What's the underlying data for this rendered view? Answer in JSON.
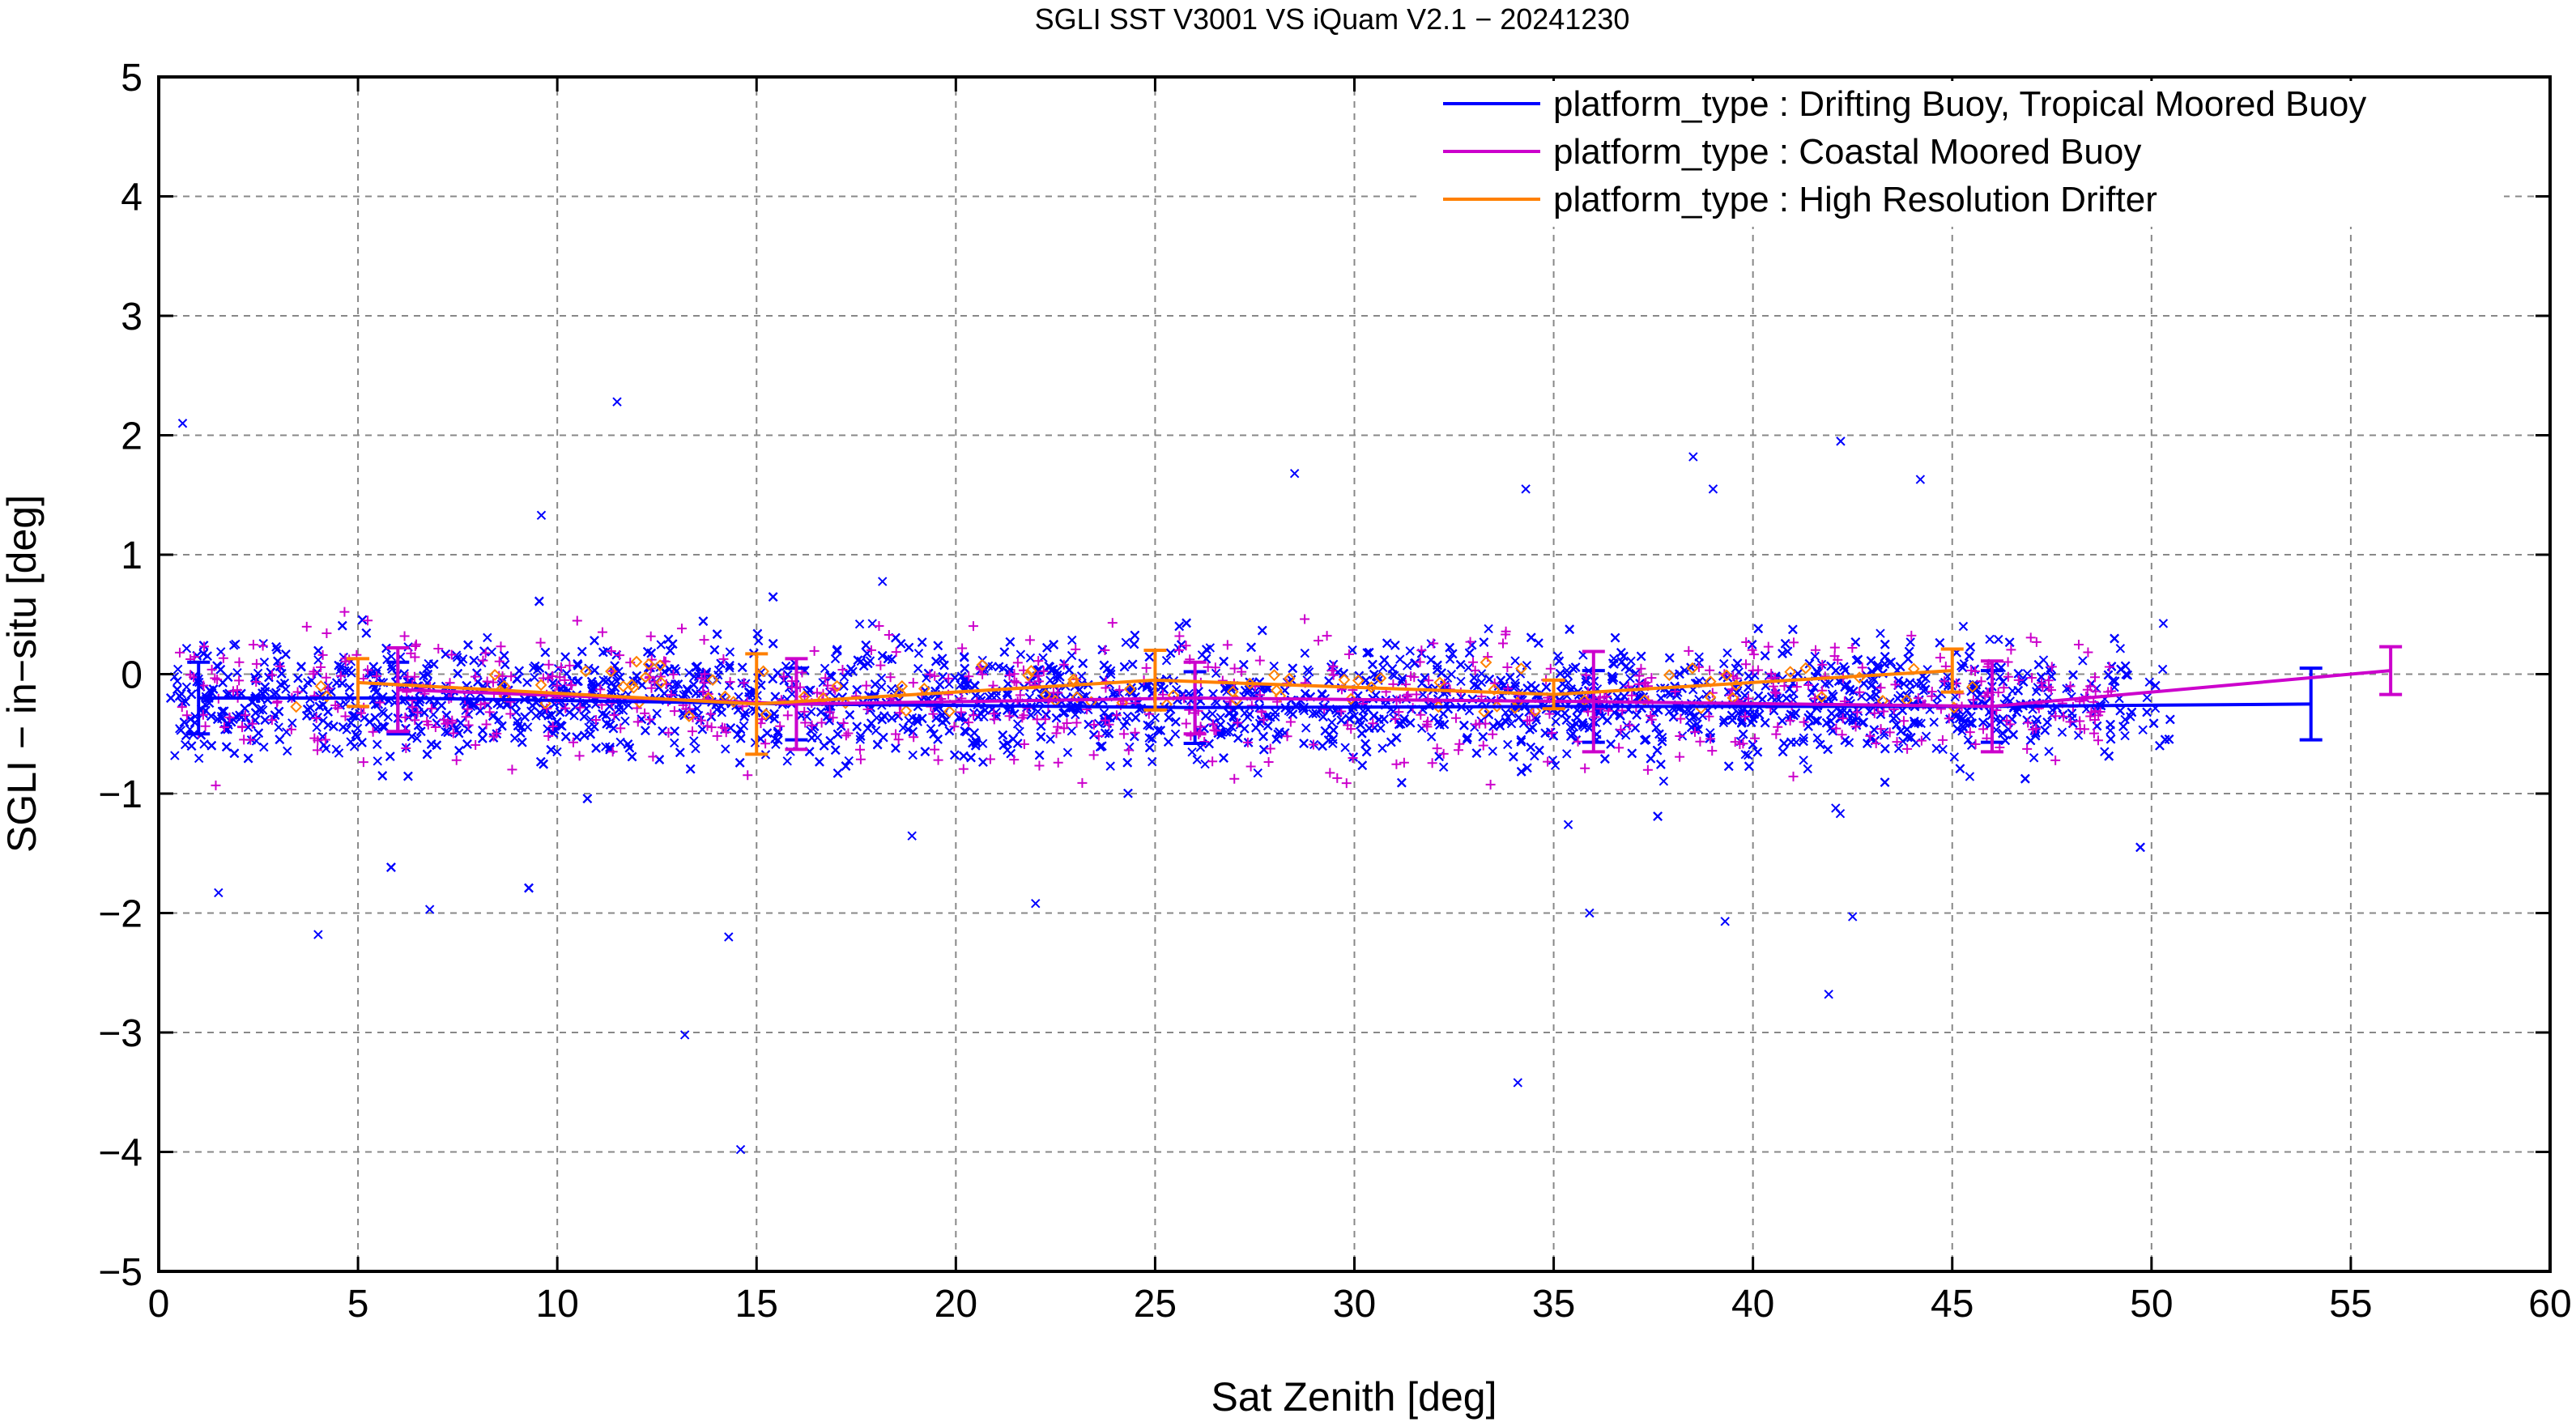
{
  "chart_data": {
    "type": "scatter",
    "title": "SGLI SST V3001 VS iQuam V2.1  − 20241230",
    "xlabel": "Sat Zenith [deg]",
    "ylabel": "SGLI − in−situ [deg]",
    "xlim": [
      0,
      60
    ],
    "ylim": [
      -5,
      5
    ],
    "xticks": [
      0,
      5,
      10,
      15,
      20,
      25,
      30,
      35,
      40,
      45,
      50,
      55,
      60
    ],
    "yticks": [
      -5,
      -4,
      -3,
      -2,
      -1,
      0,
      1,
      2,
      3,
      4,
      5
    ],
    "xtick_labels": [
      "0",
      "5",
      "10",
      "15",
      "20",
      "25",
      "30",
      "35",
      "40",
      "45",
      "50",
      "55",
      "60"
    ],
    "ytick_labels": [
      "−5",
      "−4",
      "−3",
      "−2",
      "−1",
      "0",
      "1",
      "2",
      "3",
      "4",
      "5"
    ],
    "grid": true,
    "legend_position": "top-right",
    "scatter_extent": {
      "x_range": [
        0.3,
        50.5
      ],
      "typical_y_range": [
        -1.0,
        0.6
      ]
    },
    "series": [
      {
        "name": "platform_type : Drifting Buoy, Tropical Moored Buoy",
        "color": "#0000ff",
        "marker": "x",
        "bin_x": [
          1,
          6,
          16,
          26,
          36,
          46,
          54
        ],
        "bin_mean": [
          -0.2,
          -0.2,
          -0.25,
          -0.28,
          -0.27,
          -0.27,
          -0.25
        ],
        "bin_std": [
          0.3,
          0.3,
          0.3,
          0.3,
          0.3,
          0.3,
          0.3
        ],
        "outliers": [
          {
            "x": 0.6,
            "y": 2.1
          },
          {
            "x": 11.5,
            "y": 2.28
          },
          {
            "x": 38.5,
            "y": 1.82
          },
          {
            "x": 28.5,
            "y": 1.68
          },
          {
            "x": 34.3,
            "y": 1.55
          },
          {
            "x": 39.0,
            "y": 1.55
          },
          {
            "x": 42.2,
            "y": 1.95
          },
          {
            "x": 44.2,
            "y": 1.63
          },
          {
            "x": 9.6,
            "y": 1.33
          },
          {
            "x": 4.0,
            "y": -2.18
          },
          {
            "x": 14.3,
            "y": -2.2
          },
          {
            "x": 13.2,
            "y": -3.02
          },
          {
            "x": 14.6,
            "y": -3.98
          },
          {
            "x": 34.1,
            "y": -3.42
          },
          {
            "x": 41.9,
            "y": -2.68
          },
          {
            "x": 42.5,
            "y": -2.03
          },
          {
            "x": 39.3,
            "y": -2.07
          },
          {
            "x": 1.5,
            "y": -1.83
          },
          {
            "x": 6.8,
            "y": -1.97
          },
          {
            "x": 22.0,
            "y": -1.92
          },
          {
            "x": 35.9,
            "y": -2.0
          }
        ]
      },
      {
        "name": "platform_type : Coastal Moored Buoy",
        "color": "#cc00cc",
        "marker": "+",
        "bin_x": [
          6,
          16,
          26,
          36,
          46,
          56
        ],
        "bin_mean": [
          -0.13,
          -0.25,
          -0.2,
          -0.23,
          -0.27,
          0.03
        ],
        "bin_std": [
          0.35,
          0.38,
          0.3,
          0.42,
          0.38,
          0.2
        ]
      },
      {
        "name": "platform_type : High Resolution Drifter",
        "color": "#ff8000",
        "marker": "diamond",
        "bin_x": [
          5,
          15,
          25,
          35,
          45
        ],
        "bin_mean": [
          -0.07,
          -0.25,
          -0.05,
          -0.17,
          0.03
        ],
        "bin_std": [
          0.2,
          0.42,
          0.25,
          0.12,
          0.18
        ]
      }
    ]
  }
}
